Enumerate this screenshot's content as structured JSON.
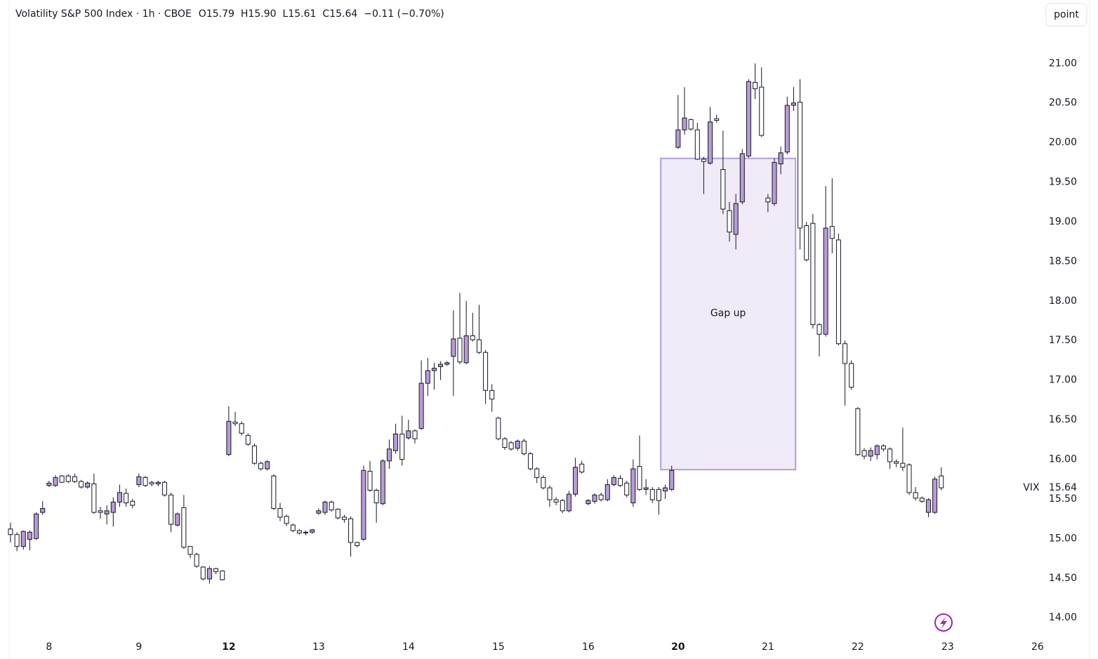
{
  "header": {
    "title": "Volatility S&P 500 Index · 1h · CBOE",
    "ohlc": [
      "O15.79",
      "H15.90",
      "L15.61",
      "C15.64"
    ],
    "change": "−0.11 (−0.70%)"
  },
  "toolbar": {
    "button": "point"
  },
  "chart_data": {
    "type": "candlestick",
    "symbol": "VIX",
    "up_color": "#b99bd8",
    "down_color": "#ffffff",
    "ylim": [
      13.78,
      21.8
    ],
    "yticks": [
      {
        "value": 14,
        "label": "14.00"
      },
      {
        "value": 14.5,
        "label": "14.50"
      },
      {
        "value": 15,
        "label": "15.00"
      },
      {
        "value": 15.5,
        "label": "15.50"
      },
      {
        "value": 16,
        "label": "16.00"
      },
      {
        "value": 16.5,
        "label": "16.50"
      },
      {
        "value": 17,
        "label": "17.00"
      },
      {
        "value": 17.5,
        "label": "17.50"
      },
      {
        "value": 18,
        "label": "18.00"
      },
      {
        "value": 18.5,
        "label": "18.50"
      },
      {
        "value": 19,
        "label": "19.00"
      },
      {
        "value": 19.5,
        "label": "19.50"
      },
      {
        "value": 20,
        "label": "20.00"
      },
      {
        "value": 20.5,
        "label": "20.50"
      },
      {
        "value": 21,
        "label": "21.00"
      }
    ],
    "categories": [
      null,
      null,
      null,
      null,
      null,
      null,
      "8",
      null,
      null,
      null,
      null,
      null,
      null,
      null,
      null,
      null,
      null,
      null,
      null,
      null,
      "9",
      null,
      null,
      null,
      null,
      null,
      null,
      null,
      null,
      null,
      null,
      null,
      null,
      null,
      "12",
      null,
      null,
      null,
      null,
      null,
      null,
      null,
      null,
      null,
      null,
      null,
      null,
      null,
      "13",
      null,
      null,
      null,
      null,
      null,
      null,
      null,
      null,
      null,
      null,
      null,
      null,
      null,
      "14",
      null,
      null,
      null,
      null,
      null,
      null,
      null,
      null,
      null,
      null,
      null,
      null,
      null,
      "15",
      null,
      null,
      null,
      null,
      null,
      null,
      null,
      null,
      null,
      null,
      null,
      null,
      null,
      "16",
      null,
      null,
      null,
      null,
      null,
      null,
      null,
      null,
      null,
      null,
      null,
      null,
      null,
      "20",
      null,
      null,
      null,
      null,
      null,
      null,
      null,
      null,
      null,
      null,
      null,
      null,
      null,
      "21",
      null,
      null,
      null,
      null,
      null,
      null,
      null,
      null,
      null,
      null,
      null,
      null,
      null,
      "22",
      null,
      null,
      null,
      null,
      null,
      null,
      null,
      null,
      null,
      null,
      null,
      null,
      null,
      "23",
      null,
      null,
      null,
      null,
      null,
      null,
      null,
      null,
      null,
      null,
      null,
      null,
      null,
      "26"
    ],
    "open": [
      15.12,
      15.05,
      14.9,
      14.99,
      15.0,
      15.33,
      15.67,
      15.67,
      15.79,
      15.79,
      15.78,
      15.72,
      15.65,
      15.69,
      15.35,
      15.31,
      15.33,
      15.46,
      15.57,
      15.47,
      15.68,
      15.77,
      15.71,
      15.69,
      15.71,
      15.55,
      15.17,
      15.39,
      14.9,
      14.8,
      14.64,
      14.49,
      14.62,
      14.59,
      16.06,
      16.47,
      16.45,
      16.3,
      16.17,
      15.95,
      15.88,
      15.79,
      15.38,
      15.28,
      15.17,
      15.1,
      15.08,
      15.08,
      15.32,
      15.33,
      15.46,
      15.37,
      15.27,
      15.25,
      14.95,
      14.99,
      15.85,
      15.61,
      15.44,
      15.98,
      16.11,
      16.32,
      16.27,
      16.36,
      16.39,
      16.96,
      17.12,
      17.17,
      17.2,
      17.3,
      17.53,
      17.22,
      17.56,
      17.51,
      17.35,
      16.87,
      16.52,
      16.26,
      16.21,
      16.14,
      16.23,
      16.07,
      15.88,
      15.77,
      15.64,
      15.49,
      15.48,
      15.35,
      15.56,
      15.94,
      15.44,
      15.47,
      15.55,
      15.49,
      15.68,
      15.76,
      15.7,
      15.45,
      15.91,
      15.62,
      15.62,
      15.62,
      15.6,
      15.62,
      19.94,
      20.16,
      20.29,
      20.16,
      19.79,
      19.74,
      20.3,
      19.66,
      19.14,
      18.84,
      19.25,
      19.83,
      20.76,
      20.7,
      19.3,
      19.23,
      19.73,
      19.88,
      20.47,
      20.51,
      18.95,
      18.98,
      17.7,
      17.58,
      18.94,
      18.77,
      17.46,
      17.21,
      16.64,
      16.11,
      16.04,
      16.06,
      16.17,
      16.13,
      15.97,
      15.95,
      15.93,
      15.58,
      15.51,
      15.33,
      15.33,
      15.79,
      null,
      null,
      null,
      null,
      null,
      null,
      null,
      null,
      null,
      null,
      null,
      null,
      null,
      null,
      null
    ],
    "high": [
      15.2,
      15.08,
      15.1,
      15.1,
      15.33,
      15.47,
      15.73,
      15.8,
      15.8,
      15.81,
      15.82,
      15.74,
      15.72,
      15.82,
      15.4,
      15.42,
      15.52,
      15.68,
      15.63,
      15.5,
      15.82,
      15.79,
      15.73,
      15.73,
      15.73,
      15.58,
      15.33,
      15.55,
      14.9,
      14.82,
      14.65,
      14.65,
      14.63,
      14.6,
      16.67,
      16.6,
      16.48,
      16.33,
      16.2,
      15.97,
      15.99,
      15.81,
      15.45,
      15.3,
      15.19,
      15.12,
      15.1,
      15.12,
      15.38,
      15.48,
      15.48,
      15.38,
      15.3,
      15.28,
      14.96,
      15.92,
      15.98,
      15.63,
      16.0,
      16.25,
      16.45,
      16.55,
      16.5,
      16.38,
      17.25,
      17.28,
      17.22,
      17.24,
      17.24,
      17.88,
      18.1,
      18.0,
      17.85,
      17.95,
      17.38,
      16.95,
      16.54,
      16.28,
      16.23,
      16.25,
      16.26,
      16.09,
      15.9,
      15.8,
      15.67,
      15.52,
      15.5,
      15.6,
      16.02,
      15.98,
      15.5,
      15.57,
      15.58,
      15.75,
      15.8,
      15.8,
      15.73,
      16.0,
      16.3,
      15.75,
      15.65,
      15.65,
      15.68,
      15.92,
      20.6,
      20.7,
      20.3,
      20.25,
      19.82,
      20.45,
      20.35,
      20.15,
      19.25,
      19.35,
      19.92,
      20.8,
      21.0,
      20.95,
      19.35,
      19.8,
      19.95,
      20.58,
      20.7,
      20.8,
      19.0,
      19.1,
      17.72,
      19.45,
      19.55,
      18.85,
      17.5,
      17.25,
      16.66,
      16.14,
      16.15,
      16.19,
      16.19,
      16.15,
      16.0,
      16.4,
      15.95,
      15.65,
      15.53,
      15.51,
      15.78,
      15.9,
      null,
      null,
      null,
      null,
      null,
      null,
      null,
      null,
      null,
      null,
      null,
      null,
      null,
      null,
      null
    ],
    "low": [
      14.95,
      14.84,
      14.86,
      14.85,
      14.98,
      15.3,
      15.65,
      15.65,
      15.7,
      15.7,
      15.7,
      15.63,
      15.63,
      15.31,
      15.25,
      15.18,
      15.15,
      15.4,
      15.4,
      15.38,
      15.65,
      15.65,
      15.66,
      15.66,
      15.53,
      15.08,
      15.15,
      14.87,
      14.75,
      14.63,
      14.47,
      14.43,
      14.55,
      14.47,
      16.04,
      16.42,
      16.3,
      16.17,
      15.93,
      15.86,
      15.86,
      15.36,
      15.22,
      15.16,
      15.08,
      15.05,
      15.04,
      15.06,
      15.3,
      15.3,
      15.34,
      15.24,
      15.2,
      14.77,
      14.89,
      14.97,
      15.59,
      15.2,
      15.42,
      15.88,
      16.07,
      15.92,
      16.25,
      16.2,
      16.37,
      16.8,
      16.88,
      17.0,
      17.18,
      16.8,
      17.2,
      17.2,
      17.49,
      17.33,
      16.7,
      16.6,
      16.24,
      16.12,
      16.11,
      16.11,
      16.05,
      15.86,
      15.7,
      15.62,
      15.4,
      15.42,
      15.32,
      15.33,
      15.53,
      15.82,
      15.42,
      15.44,
      15.47,
      15.47,
      15.66,
      15.65,
      15.52,
      15.4,
      15.6,
      15.55,
      15.45,
      15.3,
      15.5,
      15.6,
      19.92,
      20.1,
      20.15,
      19.78,
      19.35,
      19.72,
      20.25,
      19.1,
      18.75,
      18.65,
      19.22,
      19.81,
      20.55,
      20.07,
      19.12,
      19.2,
      19.6,
      19.85,
      20.4,
      18.65,
      18.5,
      17.65,
      17.3,
      17.55,
      18.6,
      17.44,
      16.68,
      16.88,
      16.04,
      16.0,
      15.98,
      16.0,
      16.1,
      15.88,
      15.9,
      15.85,
      15.55,
      15.48,
      15.45,
      15.27,
      15.31,
      15.61,
      null,
      null,
      null,
      null,
      null,
      null,
      null,
      null,
      null,
      null,
      null,
      null,
      null,
      null,
      null
    ],
    "close": [
      15.05,
      14.9,
      15.09,
      15.08,
      15.31,
      15.38,
      15.7,
      15.77,
      15.71,
      15.72,
      15.72,
      15.65,
      15.7,
      15.33,
      15.33,
      15.35,
      15.46,
      15.58,
      15.45,
      15.42,
      15.78,
      15.67,
      15.69,
      15.71,
      15.55,
      15.18,
      15.31,
      14.89,
      14.8,
      14.65,
      14.49,
      14.62,
      14.58,
      14.48,
      16.48,
      16.45,
      16.33,
      16.19,
      15.95,
      15.88,
      15.97,
      15.38,
      15.27,
      15.19,
      15.1,
      15.07,
      15.07,
      15.11,
      15.35,
      15.46,
      15.36,
      15.26,
      15.24,
      14.95,
      14.91,
      15.86,
      15.61,
      15.45,
      15.98,
      16.13,
      16.32,
      16.0,
      16.36,
      16.26,
      16.96,
      17.12,
      17.15,
      17.2,
      17.22,
      17.52,
      17.23,
      17.56,
      17.51,
      17.35,
      16.87,
      16.76,
      16.26,
      16.15,
      16.13,
      16.23,
      16.07,
      15.88,
      15.77,
      15.64,
      15.49,
      15.46,
      15.35,
      15.56,
      15.9,
      15.84,
      15.48,
      15.55,
      15.49,
      15.68,
      15.77,
      15.67,
      15.55,
      15.88,
      15.62,
      15.64,
      15.49,
      15.48,
      15.64,
      15.86,
      20.16,
      20.31,
      20.17,
      19.79,
      19.76,
      20.26,
      20.28,
      19.16,
      18.87,
      19.23,
      19.86,
      20.77,
      20.68,
      20.09,
      19.25,
      19.75,
      19.87,
      20.47,
      20.5,
      18.92,
      18.52,
      17.7,
      17.58,
      18.92,
      18.79,
      17.46,
      17.21,
      16.91,
      16.06,
      16.04,
      16.11,
      16.17,
      16.13,
      15.97,
      15.95,
      15.9,
      15.58,
      15.51,
      15.47,
      15.49,
      15.75,
      15.64,
      null,
      null,
      null,
      null,
      null,
      null,
      null,
      null,
      null,
      null,
      null,
      null,
      null,
      null,
      null
    ],
    "annotation": {
      "text": "Gap up",
      "y_top": 19.8,
      "y_bottom": 15.87,
      "fill": "#ede7f6",
      "stroke": "#b39ddb",
      "text_color": "#9c27b0"
    }
  }
}
